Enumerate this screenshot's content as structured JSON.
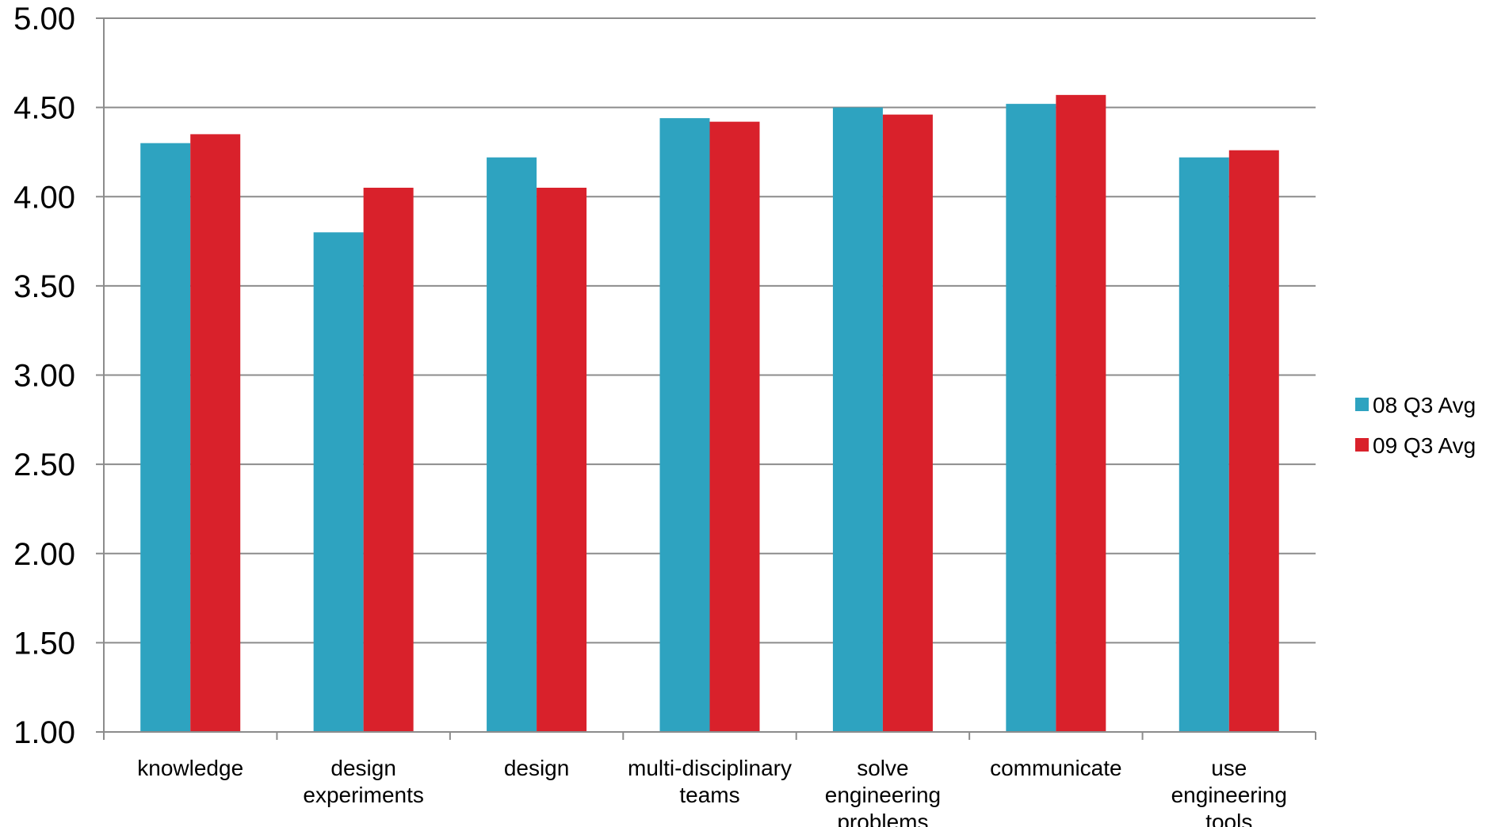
{
  "chart_data": {
    "type": "bar",
    "title": "",
    "xlabel": "",
    "ylabel": "",
    "ylim": [
      1.0,
      5.0
    ],
    "yticks": [
      "1.00",
      "1.50",
      "2.00",
      "2.50",
      "3.00",
      "3.50",
      "4.00",
      "4.50",
      "5.00"
    ],
    "grid": true,
    "legend_position": "right",
    "categories": [
      [
        "knowledge"
      ],
      [
        "design",
        "experiments"
      ],
      [
        "design"
      ],
      [
        "multi-disciplinary",
        "teams"
      ],
      [
        "solve",
        "engineering",
        "problems"
      ],
      [
        "communicate"
      ],
      [
        "use",
        "engineering",
        "tools"
      ]
    ],
    "series": [
      {
        "name": "08 Q3 Avg",
        "color": "#2EA3C0",
        "values": [
          4.3,
          3.8,
          4.22,
          4.44,
          4.5,
          4.52,
          4.22
        ]
      },
      {
        "name": "09 Q3 Avg",
        "color": "#D9212B",
        "values": [
          4.35,
          4.05,
          4.05,
          4.42,
          4.46,
          4.57,
          4.26
        ]
      }
    ]
  }
}
